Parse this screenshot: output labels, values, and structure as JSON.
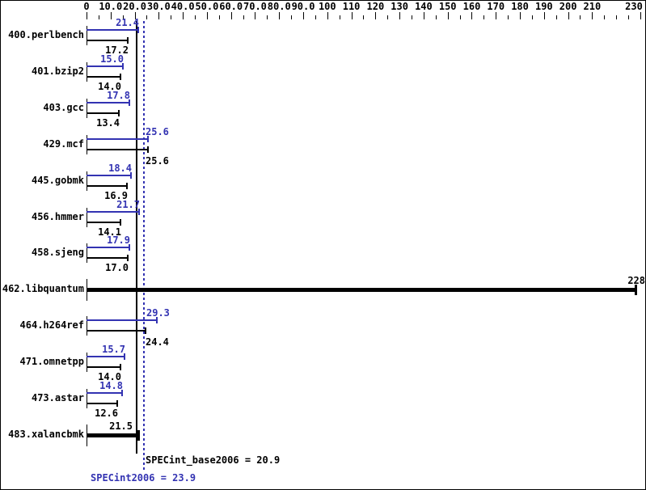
{
  "colors": {
    "peak_blue": "#3333b2",
    "base_black": "#000000",
    "background": "#ffffff"
  },
  "chart_data": {
    "type": "bar",
    "orientation": "horizontal",
    "title": "",
    "xlabel": "",
    "ylabel": "",
    "axis": {
      "position": "top",
      "min": 0,
      "max": 231,
      "minor_tick_step": 5,
      "major_tick_step": 10,
      "unlabeled_major_ticks": [
        220
      ],
      "tick_labels": [
        "0",
        "10.0",
        "20.0",
        "30.0",
        "40.0",
        "50.0",
        "60.0",
        "70.0",
        "80.0",
        "90.0",
        "100",
        "110",
        "120",
        "130",
        "140",
        "150",
        "160",
        "170",
        "180",
        "190",
        "200",
        "210",
        "230"
      ]
    },
    "series": [
      {
        "name": "SPECint2006 (peak)",
        "color": "#3333b2"
      },
      {
        "name": "SPECint_base2006 (base)",
        "color": "#000000"
      }
    ],
    "benchmarks": [
      {
        "name": "400.perlbench",
        "peak": "21.4",
        "base": "17.2"
      },
      {
        "name": "401.bzip2",
        "peak": "15.0",
        "base": "14.0"
      },
      {
        "name": "403.gcc",
        "peak": "17.8",
        "base": "13.4"
      },
      {
        "name": "429.mcf",
        "peak": "25.6",
        "base": "25.6"
      },
      {
        "name": "445.gobmk",
        "peak": "18.4",
        "base": "16.9"
      },
      {
        "name": "456.hmmer",
        "peak": "21.7",
        "base": "14.1"
      },
      {
        "name": "458.sjeng",
        "peak": "17.9",
        "base": "17.0"
      },
      {
        "name": "462.libquantum",
        "single": "228"
      },
      {
        "name": "464.h264ref",
        "peak": "29.3",
        "base": "24.4"
      },
      {
        "name": "471.omnetpp",
        "peak": "15.7",
        "base": "14.0"
      },
      {
        "name": "473.astar",
        "peak": "14.8",
        "base": "12.6"
      },
      {
        "name": "483.xalancbmk",
        "single": "21.5"
      }
    ],
    "reference_lines": [
      {
        "name": "base-mean",
        "value": 20.9,
        "style": "solid",
        "color": "#000000"
      },
      {
        "name": "peak-mean",
        "value": 23.9,
        "style": "dotted",
        "color": "#3333b2"
      }
    ],
    "summary": {
      "base_text": "SPECint_base2006 = 20.9",
      "base_value": "20.9",
      "peak_text": "SPECint2006 = 23.9",
      "peak_value": "23.9"
    }
  }
}
